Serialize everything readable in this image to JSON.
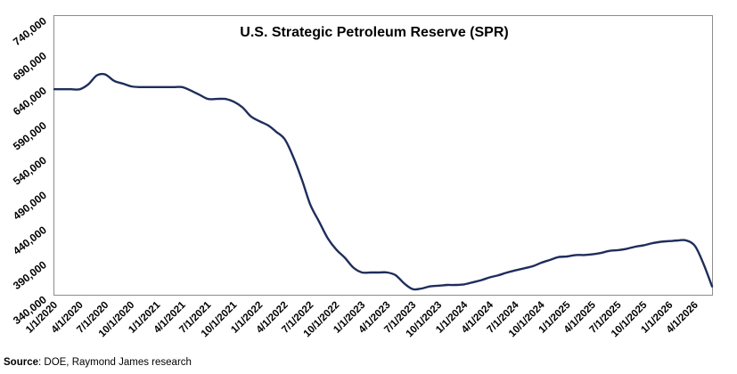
{
  "chart_data": {
    "type": "line",
    "title": "U.S. Strategic Petroleum Reserve (SPR)",
    "xlabel": "",
    "ylabel": "",
    "ylim": [
      340000,
      740000
    ],
    "yticks": [
      340000,
      390000,
      440000,
      490000,
      540000,
      590000,
      640000,
      690000,
      740000
    ],
    "ytick_labels": [
      "340,000",
      "390,000",
      "440,000",
      "490,000",
      "540,000",
      "590,000",
      "640,000",
      "690,000",
      "740,000"
    ],
    "xticks": [
      "2020-01-01",
      "2020-04-01",
      "2020-07-01",
      "2020-10-01",
      "2021-01-01",
      "2021-04-01",
      "2021-07-01",
      "2021-10-01",
      "2022-01-01",
      "2022-04-01",
      "2022-07-01",
      "2022-10-01",
      "2023-01-01",
      "2023-04-01",
      "2023-07-01",
      "2023-10-01",
      "2024-01-01",
      "2024-04-01",
      "2024-07-01",
      "2024-10-01",
      "2025-01-01",
      "2025-04-01",
      "2025-07-01",
      "2025-10-01",
      "2026-01-01",
      "2026-04-01"
    ],
    "xtick_labels": [
      "1/1/2020",
      "4/1/2020",
      "7/1/2020",
      "10/1/2020",
      "1/1/2021",
      "4/1/2021",
      "7/1/2021",
      "10/1/2021",
      "1/1/2022",
      "4/1/2022",
      "7/1/2022",
      "10/1/2022",
      "1/1/2023",
      "4/1/2023",
      "7/1/2023",
      "10/1/2023",
      "1/1/2024",
      "4/1/2024",
      "7/1/2024",
      "10/1/2024",
      "1/1/2025",
      "4/1/2025",
      "7/1/2025",
      "10/1/2025",
      "1/1/2026",
      "4/1/2026"
    ],
    "xlim": [
      "2020-01-01",
      "2026-06-01"
    ],
    "grid": false,
    "legend": "none",
    "line_color": "#1f2d5c",
    "series": [
      {
        "values": [
          [
            "2020-01-01",
            635000
          ],
          [
            "2020-02-01",
            635000
          ],
          [
            "2020-03-01",
            635000
          ],
          [
            "2020-04-01",
            635000
          ],
          [
            "2020-05-01",
            642000
          ],
          [
            "2020-06-01",
            655000
          ],
          [
            "2020-07-01",
            656000
          ],
          [
            "2020-08-01",
            647000
          ],
          [
            "2020-09-01",
            643000
          ],
          [
            "2020-10-01",
            639000
          ],
          [
            "2020-11-01",
            638000
          ],
          [
            "2020-12-01",
            638000
          ],
          [
            "2021-01-01",
            638000
          ],
          [
            "2021-02-01",
            638000
          ],
          [
            "2021-03-01",
            638000
          ],
          [
            "2021-04-01",
            638000
          ],
          [
            "2021-05-01",
            633000
          ],
          [
            "2021-06-01",
            627000
          ],
          [
            "2021-07-01",
            621000
          ],
          [
            "2021-08-01",
            621000
          ],
          [
            "2021-09-01",
            621000
          ],
          [
            "2021-10-01",
            617000
          ],
          [
            "2021-11-01",
            609000
          ],
          [
            "2021-12-01",
            596000
          ],
          [
            "2022-01-01",
            589000
          ],
          [
            "2022-02-01",
            583000
          ],
          [
            "2022-03-01",
            574000
          ],
          [
            "2022-04-01",
            563000
          ],
          [
            "2022-05-01",
            538000
          ],
          [
            "2022-06-01",
            505000
          ],
          [
            "2022-07-01",
            469000
          ],
          [
            "2022-08-01",
            445000
          ],
          [
            "2022-09-01",
            421000
          ],
          [
            "2022-10-01",
            405000
          ],
          [
            "2022-11-01",
            393000
          ],
          [
            "2022-12-01",
            379000
          ],
          [
            "2023-01-01",
            372000
          ],
          [
            "2023-02-01",
            372000
          ],
          [
            "2023-03-01",
            372000
          ],
          [
            "2023-04-01",
            372000
          ],
          [
            "2023-05-01",
            368000
          ],
          [
            "2023-06-01",
            356000
          ],
          [
            "2023-07-01",
            348000
          ],
          [
            "2023-08-01",
            349000
          ],
          [
            "2023-09-01",
            352000
          ],
          [
            "2023-10-01",
            353000
          ],
          [
            "2023-11-01",
            354000
          ],
          [
            "2023-12-01",
            354000
          ],
          [
            "2024-01-01",
            355000
          ],
          [
            "2024-02-01",
            358000
          ],
          [
            "2024-03-01",
            361000
          ],
          [
            "2024-04-01",
            365000
          ],
          [
            "2024-05-01",
            368000
          ],
          [
            "2024-06-01",
            372000
          ],
          [
            "2024-07-01",
            375000
          ],
          [
            "2024-08-01",
            378000
          ],
          [
            "2024-09-01",
            381000
          ],
          [
            "2024-10-01",
            386000
          ],
          [
            "2024-11-01",
            390000
          ],
          [
            "2024-12-01",
            394000
          ],
          [
            "2025-01-01",
            395000
          ],
          [
            "2025-02-01",
            397000
          ],
          [
            "2025-03-01",
            397000
          ],
          [
            "2025-04-01",
            398000
          ],
          [
            "2025-05-01",
            400000
          ],
          [
            "2025-06-01",
            403000
          ],
          [
            "2025-07-01",
            404000
          ],
          [
            "2025-08-01",
            406000
          ],
          [
            "2025-09-01",
            409000
          ],
          [
            "2025-10-01",
            411000
          ],
          [
            "2025-11-01",
            414000
          ],
          [
            "2025-12-01",
            416000
          ],
          [
            "2026-01-01",
            417000
          ],
          [
            "2026-02-01",
            418000
          ],
          [
            "2026-03-01",
            418000
          ],
          [
            "2026-04-01",
            410000
          ],
          [
            "2026-05-01",
            385000
          ],
          [
            "2026-06-01",
            352000
          ]
        ]
      }
    ]
  },
  "source": {
    "label": "Source",
    "text": ": DOE, Raymond James research"
  }
}
